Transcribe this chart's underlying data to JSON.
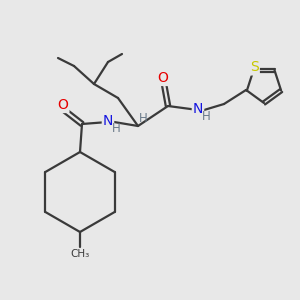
{
  "bg_color": "#e8e8e8",
  "bond_color": "#3a3a3a",
  "atom_colors": {
    "O": "#e60000",
    "N": "#1414e0",
    "S": "#c8c800",
    "H": "#6a7a8a",
    "C": "#3a3a3a"
  },
  "figsize": [
    3.0,
    3.0
  ],
  "dpi": 100
}
